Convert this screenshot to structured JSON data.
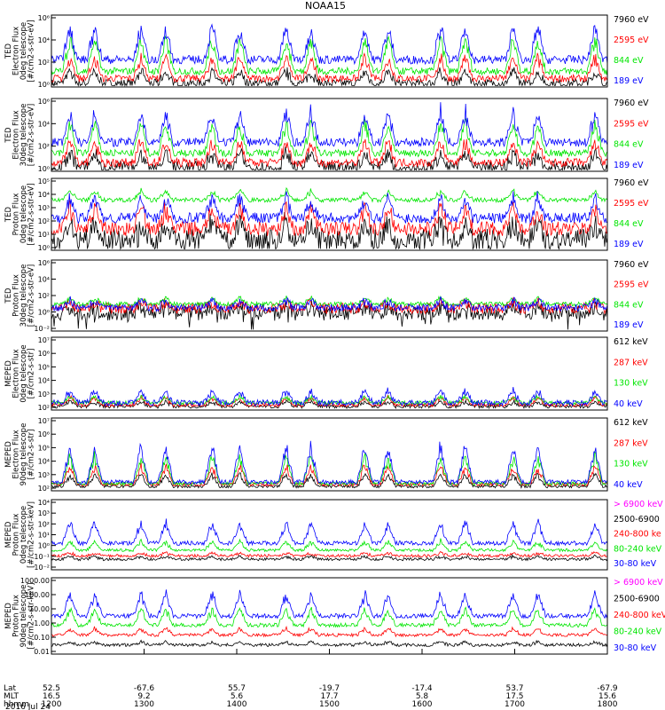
{
  "title": "NOAA15",
  "colors": {
    "black": "#000000",
    "red": "#ff0000",
    "green": "#00e600",
    "blue": "#0000ff",
    "magenta": "#ff00ff"
  },
  "panels": [
    {
      "ylabel": [
        "TED",
        "Electron Flux",
        "0deg telescope",
        "[#/cm2-s-str-eV]"
      ],
      "yticks": [
        "10⁶",
        "10⁴",
        "10²",
        "10⁰"
      ],
      "ytick_exp": [
        6,
        4,
        2,
        0
      ],
      "legend": [
        {
          "label": "7960 eV",
          "color": "black"
        },
        {
          "label": "2595 eV",
          "color": "red"
        },
        {
          "label": "844 eV",
          "color": "green"
        },
        {
          "label": "189 eV",
          "color": "blue"
        }
      ]
    },
    {
      "ylabel": [
        "TED",
        "Electron Flux",
        "30deg telescope",
        "[#/cm2-s-str-eV]"
      ],
      "yticks": [
        "10⁶",
        "10⁴",
        "10²",
        "10⁰"
      ],
      "ytick_exp": [
        6,
        4,
        2,
        0
      ],
      "legend": [
        {
          "label": "7960 eV",
          "color": "black"
        },
        {
          "label": "2595 eV",
          "color": "red"
        },
        {
          "label": "844 eV",
          "color": "green"
        },
        {
          "label": "189 eV",
          "color": "blue"
        }
      ]
    },
    {
      "ylabel": [
        "TED",
        "Proton Flux",
        "0deg telescope",
        "[#/cm2-s-str-eV]"
      ],
      "yticks": [
        "10⁵",
        "10⁴",
        "10³",
        "10²",
        "10¹",
        "10⁰"
      ],
      "ytick_exp": [
        5,
        4,
        3,
        2,
        1,
        0
      ],
      "legend": [
        {
          "label": "7960 eV",
          "color": "black"
        },
        {
          "label": "2595 eV",
          "color": "red"
        },
        {
          "label": "844 eV",
          "color": "green"
        },
        {
          "label": "189 eV",
          "color": "blue"
        }
      ]
    },
    {
      "ylabel": [
        "TED",
        "Proton Flux",
        "30deg telescope",
        "[#/cm2-s-str-eV]"
      ],
      "yticks": [
        "10⁶",
        "10⁴",
        "10²",
        "10⁰",
        "10⁻²"
      ],
      "ytick_exp": [
        6,
        4,
        2,
        0,
        -2
      ],
      "legend": [
        {
          "label": "7960 eV",
          "color": "black"
        },
        {
          "label": "2595 eV",
          "color": "red"
        },
        {
          "label": "844 eV",
          "color": "green"
        },
        {
          "label": "189 eV",
          "color": "blue"
        }
      ]
    },
    {
      "ylabel": [
        "MEPED",
        "Electron Flux",
        "0deg telescope",
        "[#/cm2-s-str]"
      ],
      "yticks": [
        "10⁷",
        "10⁶",
        "10⁵",
        "10⁴",
        "10³",
        "10²"
      ],
      "ytick_exp": [
        7,
        6,
        5,
        4,
        3,
        2
      ],
      "legend": [
        {
          "label": "612 keV",
          "color": "black"
        },
        {
          "label": "287 keV",
          "color": "red"
        },
        {
          "label": "130 keV",
          "color": "green"
        },
        {
          "label": "40 keV",
          "color": "blue"
        }
      ]
    },
    {
      "ylabel": [
        "MEPED",
        "Electron Flux",
        "90deg telescope",
        "[#/cm2-s-str]"
      ],
      "yticks": [
        "10⁷",
        "10⁶",
        "10⁵",
        "10⁴",
        "10³",
        "10²"
      ],
      "ytick_exp": [
        7,
        6,
        5,
        4,
        3,
        2
      ],
      "legend": [
        {
          "label": "612 keV",
          "color": "black"
        },
        {
          "label": "287 keV",
          "color": "red"
        },
        {
          "label": "130 keV",
          "color": "green"
        },
        {
          "label": "40 keV",
          "color": "blue"
        }
      ]
    },
    {
      "ylabel": [
        "MEPED",
        "Proton Flux",
        "0deg telescope",
        "[#/cm2-s-str-keV]"
      ],
      "yticks": [
        "10⁴",
        "10³",
        "10²",
        "10¹",
        "10⁰",
        "10⁻¹",
        "10⁻²"
      ],
      "ytick_exp": [
        4,
        3,
        2,
        1,
        0,
        -1,
        -2
      ],
      "legend": [
        {
          "label": "> 6900 keV",
          "color": "magenta"
        },
        {
          "label": "2500-6900",
          "color": "black"
        },
        {
          "label": "240-800 ke",
          "color": "red"
        },
        {
          "label": "80-240 keV",
          "color": "green"
        },
        {
          "label": "30-80 keV",
          "color": "blue"
        }
      ]
    },
    {
      "ylabel": [
        "MEPED",
        "Proton Flux",
        "90deg telescope",
        "[#/cm2-s-str-keV]"
      ],
      "yticks": [
        "1000.00",
        "100.00",
        "10.00",
        "1.00",
        "0.10",
        "0.01"
      ],
      "ytick_exp": [
        3,
        2,
        1,
        0,
        -1,
        -2
      ],
      "legend": [
        {
          "label": "> 6900 keV",
          "color": "magenta"
        },
        {
          "label": "2500-6900",
          "color": "black"
        },
        {
          "label": "240-800 keV",
          "color": "red"
        },
        {
          "label": "80-240 keV",
          "color": "green"
        },
        {
          "label": "30-80 keV",
          "color": "blue"
        }
      ]
    }
  ],
  "xaxis": {
    "row_labels": [
      "Lat",
      "MLT",
      "hhmm"
    ],
    "date": "2016 Jul 24",
    "ticks": [
      {
        "lat": "52.5",
        "mlt": "16.5",
        "hhmm": "1200"
      },
      {
        "lat": "-67.6",
        "mlt": "9.2",
        "hhmm": "1300"
      },
      {
        "lat": "55.7",
        "mlt": "5.6",
        "hhmm": "1400"
      },
      {
        "lat": "-19.7",
        "mlt": "17.7",
        "hhmm": "1500"
      },
      {
        "lat": "-17.4",
        "mlt": "5.8",
        "hhmm": "1600"
      },
      {
        "lat": "53.7",
        "mlt": "17.5",
        "hhmm": "1700"
      },
      {
        "lat": "-67.9",
        "mlt": "15.6",
        "hhmm": "1800"
      }
    ]
  },
  "chart_data": {
    "type": "line",
    "title": "NOAA15",
    "x": [
      "1200",
      "1300",
      "1400",
      "1500",
      "1600",
      "1700",
      "1800"
    ],
    "xlabel": "hhmm",
    "passes_hhmm": [
      "1212",
      "1228",
      "1258",
      "1314",
      "1344",
      "1402",
      "1432",
      "1448",
      "1523",
      "1538",
      "1612",
      "1628",
      "1659",
      "1715",
      "1752"
    ],
    "series": [
      {
        "panel": 1,
        "name": "189 eV",
        "peak_log10": 6.5,
        "quiet_log10": 2.3
      },
      {
        "panel": 1,
        "name": "844 eV",
        "peak_log10": 5.2,
        "quiet_log10": 1.3
      },
      {
        "panel": 1,
        "name": "2595 eV",
        "peak_log10": 3.2,
        "quiet_log10": 0.3
      },
      {
        "panel": 1,
        "name": "7960 eV",
        "peak_log10": 2.0,
        "quiet_log10": 0.0
      },
      {
        "panel": 3,
        "name": "844 eV",
        "peak_log10": 3.9,
        "quiet_log10": 2.2
      },
      {
        "panel": 5,
        "name": "40 keV",
        "peak_log10": 7.0,
        "quiet_log10": 2.5
      },
      {
        "panel": 7,
        "name": "30-80 keV",
        "peak_log10": 3.2,
        "quiet_log10": 0.8
      },
      {
        "panel": 8,
        "name": "30-80 keV",
        "peak_log10": 3.3,
        "quiet_log10": 0.5
      }
    ]
  }
}
